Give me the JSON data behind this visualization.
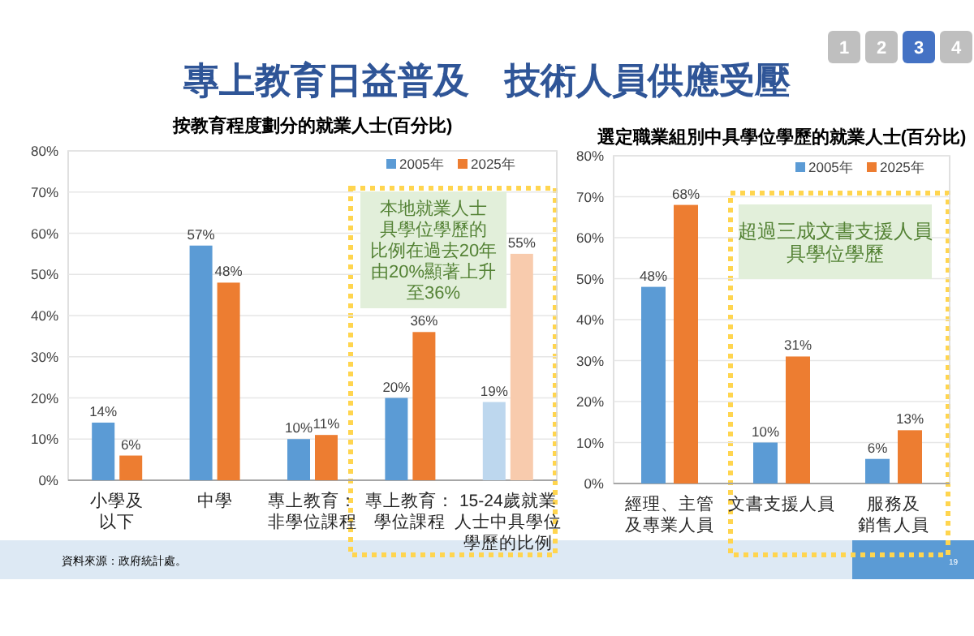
{
  "chart_data": [
    {
      "type": "bar",
      "title": "按教育程度劃分的就業人士(百分比)",
      "categories": [
        "小學及以下",
        "中學",
        "專上教育：非學位課程",
        "專上教育：學位課程",
        "15-24歲就業人士中具學位學歷的比例"
      ],
      "series": [
        {
          "name": "2005年",
          "color": "#5b9bd5",
          "colors": [
            "#5b9bd5",
            "#5b9bd5",
            "#5b9bd5",
            "#5b9bd5",
            "#bdd7ee"
          ],
          "values": [
            14,
            57,
            10,
            20,
            19
          ],
          "value_labels": [
            "14%",
            "57%",
            "10%",
            "20%",
            "19%"
          ]
        },
        {
          "name": "2025年",
          "color": "#ed7d31",
          "colors": [
            "#ed7d31",
            "#ed7d31",
            "#ed7d31",
            "#ed7d31",
            "#f8cbad"
          ],
          "values": [
            6,
            48,
            11,
            36,
            55
          ],
          "value_labels": [
            "6%",
            "48%",
            "11%",
            "36%",
            "55%"
          ]
        }
      ],
      "ylim": [
        0,
        80
      ],
      "yticks": [
        {
          "value": 0,
          "label": "0%"
        },
        {
          "value": 10,
          "label": "10%"
        },
        {
          "value": 20,
          "label": "20%"
        },
        {
          "value": 30,
          "label": "30%"
        },
        {
          "value": 40,
          "label": "40%"
        },
        {
          "value": 50,
          "label": "50%"
        },
        {
          "value": 60,
          "label": "60%"
        },
        {
          "value": 70,
          "label": "70%"
        },
        {
          "value": 80,
          "label": "80%"
        }
      ],
      "grid": "y",
      "legend": "top right",
      "annotations": [
        "專上教育日益普及　技術人員供應受壓",
        "本地就業人士具學位學歷的比例在過去20年由20%顯著上升至36%",
        "資料來源：政府統計處。",
        "1",
        "2",
        "3",
        "4",
        "19"
      ]
    },
    {
      "type": "bar",
      "title": "選定職業組別中具學位學歷的就業人士(百分比)",
      "categories": [
        "經理、主管及專業人員",
        "文書支援人員",
        "服務及銷售人員"
      ],
      "series": [
        {
          "name": "2005年",
          "color": "#5b9bd5",
          "values": [
            48,
            10,
            6
          ],
          "value_labels": [
            "48%",
            "10%",
            "6%"
          ]
        },
        {
          "name": "2025年",
          "color": "#ed7d31",
          "values": [
            68,
            31,
            13
          ],
          "value_labels": [
            "68%",
            "31%",
            "13%"
          ]
        }
      ],
      "ylim": [
        0,
        80
      ],
      "yticks": [
        {
          "value": 0,
          "label": "0%"
        },
        {
          "value": 10,
          "label": "10%"
        },
        {
          "value": 20,
          "label": "20%"
        },
        {
          "value": 30,
          "label": "30%"
        },
        {
          "value": 40,
          "label": "40%"
        },
        {
          "value": 50,
          "label": "50%"
        },
        {
          "value": 60,
          "label": "60%"
        },
        {
          "value": 70,
          "label": "70%"
        },
        {
          "value": 80,
          "label": "80%"
        }
      ],
      "grid": "y",
      "legend": "top right",
      "annotations": [
        "超過三成文書支援人員具學位學歷"
      ]
    }
  ]
}
